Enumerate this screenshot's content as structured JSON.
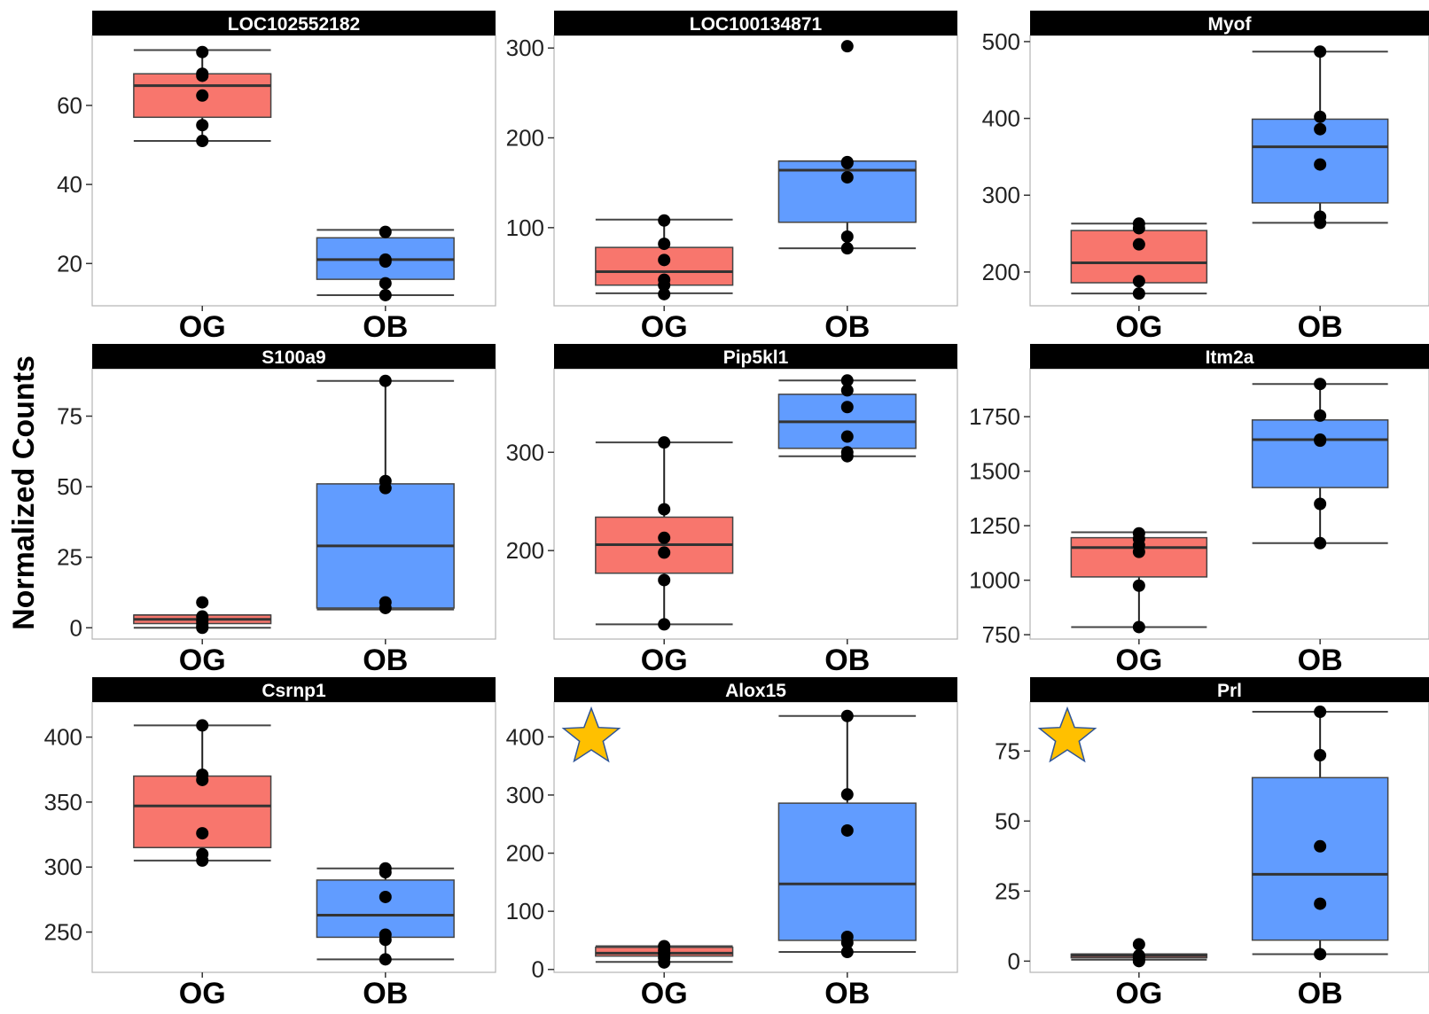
{
  "ylabel": "Normalized Counts",
  "colors": {
    "og": "#F8766D",
    "ob": "#619CFF",
    "star": "#FFC000",
    "strip": "#000000"
  },
  "chart_data": [
    {
      "type": "box",
      "title": "LOC102552182",
      "categories": [
        "OG",
        "OB"
      ],
      "yticks": [
        20,
        40,
        60
      ],
      "ylim": [
        9.3,
        77.7
      ],
      "star": false,
      "groups": [
        {
          "name": "OG",
          "whisker_low": 51,
          "q1": 57,
          "median": 65,
          "q3": 68,
          "whisker_high": 74,
          "points": [
            73.5,
            68,
            67.5,
            62.5,
            55,
            51
          ]
        },
        {
          "name": "OB",
          "whisker_low": 12,
          "q1": 16,
          "median": 21,
          "q3": 26.5,
          "whisker_high": 28.5,
          "points": [
            28,
            21,
            20.5,
            15,
            12
          ]
        }
      ]
    },
    {
      "type": "box",
      "title": "LOC100134871",
      "categories": [
        "OG",
        "OB"
      ],
      "yticks": [
        100,
        200,
        300
      ],
      "ylim": [
        13,
        314
      ],
      "star": false,
      "groups": [
        {
          "name": "OG",
          "whisker_low": 27,
          "q1": 36,
          "median": 51,
          "q3": 78,
          "whisker_high": 109,
          "points": [
            108,
            82,
            64,
            42,
            36,
            26
          ]
        },
        {
          "name": "OB",
          "whisker_low": 77,
          "q1": 106,
          "median": 164,
          "q3": 174,
          "whisker_high": 174,
          "points": [
            302,
            173,
            172,
            156,
            90,
            77
          ]
        }
      ]
    },
    {
      "type": "box",
      "title": "Myof",
      "categories": [
        "OG",
        "OB"
      ],
      "yticks": [
        200,
        300,
        400,
        500
      ],
      "ylim": [
        156,
        508
      ],
      "star": false,
      "groups": [
        {
          "name": "OG",
          "whisker_low": 172,
          "q1": 186,
          "median": 212,
          "q3": 254,
          "whisker_high": 263,
          "points": [
            263,
            257,
            236,
            188,
            172
          ]
        },
        {
          "name": "OB",
          "whisker_low": 264,
          "q1": 290,
          "median": 363,
          "q3": 399,
          "whisker_high": 487,
          "points": [
            487,
            402,
            386,
            340,
            272,
            264
          ]
        }
      ]
    },
    {
      "type": "box",
      "title": "S100a9",
      "categories": [
        "OG",
        "OB"
      ],
      "yticks": [
        0,
        25,
        50,
        75
      ],
      "ylim": [
        -4,
        91.8
      ],
      "star": false,
      "groups": [
        {
          "name": "OG",
          "whisker_low": 0,
          "q1": 1.5,
          "median": 3,
          "q3": 4.5,
          "whisker_high": 4.5,
          "points": [
            9,
            4,
            2.5,
            1.5,
            0.5,
            0
          ]
        },
        {
          "name": "OB",
          "whisker_low": 6.5,
          "q1": 7,
          "median": 29,
          "q3": 51,
          "whisker_high": 87.5,
          "points": [
            87.5,
            52,
            49.5,
            9,
            7
          ]
        }
      ]
    },
    {
      "type": "box",
      "title": "Pip5kl1",
      "categories": [
        "OG",
        "OB"
      ],
      "yticks": [
        200,
        300
      ],
      "ylim": [
        110,
        385
      ],
      "star": false,
      "groups": [
        {
          "name": "OG",
          "whisker_low": 125,
          "q1": 177,
          "median": 206,
          "q3": 234,
          "whisker_high": 310,
          "points": [
            310,
            242,
            213,
            198,
            170,
            125
          ]
        },
        {
          "name": "OB",
          "whisker_low": 296,
          "q1": 304,
          "median": 331,
          "q3": 359,
          "whisker_high": 373,
          "points": [
            373,
            363,
            346,
            316,
            300,
            296
          ]
        }
      ]
    },
    {
      "type": "box",
      "title": "Itm2a",
      "categories": [
        "OG",
        "OB"
      ],
      "yticks": [
        750,
        1000,
        1250,
        1500,
        1750
      ],
      "ylim": [
        730,
        1970
      ],
      "star": false,
      "groups": [
        {
          "name": "OG",
          "whisker_low": 785,
          "q1": 1015,
          "median": 1150,
          "q3": 1195,
          "whisker_high": 1220,
          "points": [
            1215,
            1190,
            1160,
            1130,
            975,
            785
          ]
        },
        {
          "name": "OB",
          "whisker_low": 1170,
          "q1": 1425,
          "median": 1645,
          "q3": 1735,
          "whisker_high": 1900,
          "points": [
            1900,
            1755,
            1645,
            1640,
            1350,
            1170
          ]
        }
      ]
    },
    {
      "type": "box",
      "title": "Csrnp1",
      "categories": [
        "OG",
        "OB"
      ],
      "yticks": [
        250,
        300,
        350,
        400
      ],
      "ylim": [
        219,
        427
      ],
      "star": false,
      "groups": [
        {
          "name": "OG",
          "whisker_low": 305,
          "q1": 315,
          "median": 347,
          "q3": 370,
          "whisker_high": 409,
          "points": [
            409,
            371,
            367,
            326,
            310,
            305
          ]
        },
        {
          "name": "OB",
          "whisker_low": 229,
          "q1": 246,
          "median": 263,
          "q3": 290,
          "whisker_high": 299,
          "points": [
            299,
            296,
            277,
            248,
            244,
            229
          ]
        }
      ]
    },
    {
      "type": "box",
      "title": "Alox15",
      "categories": [
        "OG",
        "OB"
      ],
      "yticks": [
        0,
        100,
        200,
        300,
        400
      ],
      "ylim": [
        -5,
        460
      ],
      "star": true,
      "groups": [
        {
          "name": "OG",
          "whisker_low": 13,
          "q1": 23,
          "median": 28,
          "q3": 38,
          "whisker_high": 40,
          "points": [
            40,
            33,
            27,
            20,
            12
          ]
        },
        {
          "name": "OB",
          "whisker_low": 30,
          "q1": 50,
          "median": 147,
          "q3": 286,
          "whisker_high": 436,
          "points": [
            436,
            301,
            239,
            56,
            46,
            30
          ]
        }
      ]
    },
    {
      "type": "box",
      "title": "Prl",
      "categories": [
        "OG",
        "OB"
      ],
      "yticks": [
        0,
        25,
        50,
        75
      ],
      "ylim": [
        -4,
        92.5
      ],
      "star": true,
      "groups": [
        {
          "name": "OG",
          "whisker_low": 0.5,
          "q1": 1.2,
          "median": 2,
          "q3": 2.5,
          "whisker_high": 2.5,
          "points": [
            6,
            2,
            1.5,
            0.5,
            0
          ]
        },
        {
          "name": "OB",
          "whisker_low": 2.5,
          "q1": 7.5,
          "median": 31,
          "q3": 65.5,
          "whisker_high": 89,
          "points": [
            89,
            73.5,
            41,
            20.5,
            2.5
          ]
        }
      ]
    }
  ]
}
